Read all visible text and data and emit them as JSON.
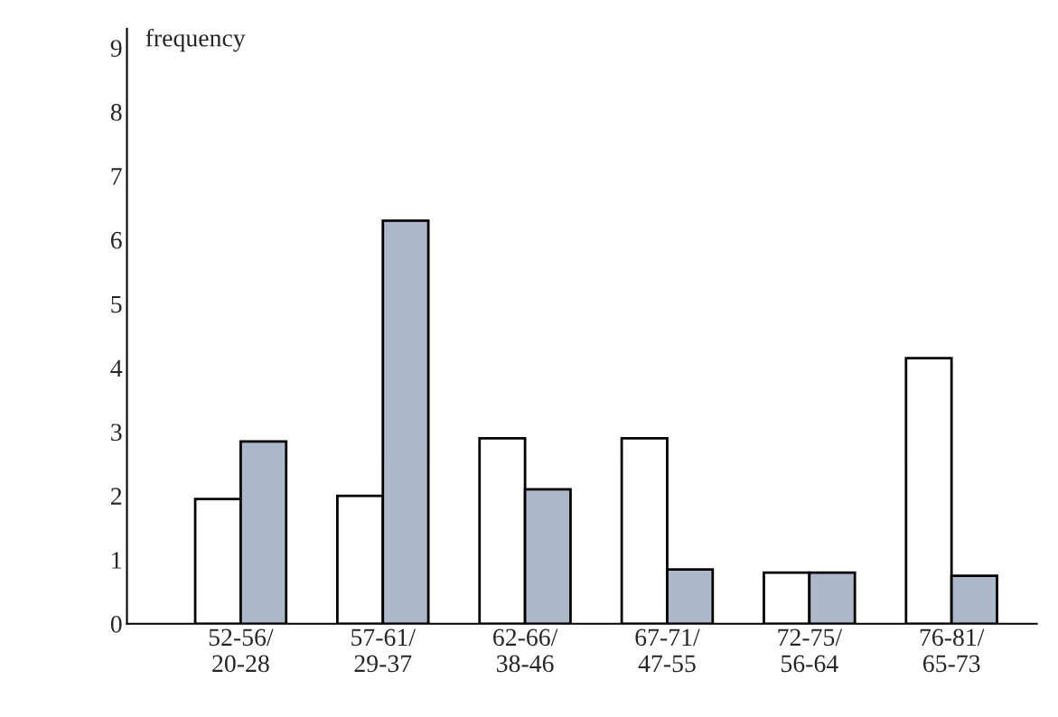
{
  "chart_data": {
    "type": "bar",
    "ylabel": "frequency",
    "categories": [
      "52-56/\n20-28",
      "57-61/\n29-37",
      "62-66/\n38-46",
      "67-71/\n47-55",
      "72-75/\n56-64",
      "76-81/\n65-73"
    ],
    "series": [
      {
        "color": "#ffffff",
        "values": [
          1.95,
          2.0,
          2.9,
          2.9,
          0.8,
          4.15
        ]
      },
      {
        "color": "#adb9ca",
        "values": [
          2.85,
          6.3,
          2.1,
          0.85,
          0.8,
          0.75
        ]
      }
    ],
    "ylim": [
      0,
      9.3
    ],
    "yticks": [
      0,
      1,
      2,
      3,
      4,
      5,
      6,
      7,
      8,
      9
    ],
    "grid": false,
    "legend": false
  }
}
